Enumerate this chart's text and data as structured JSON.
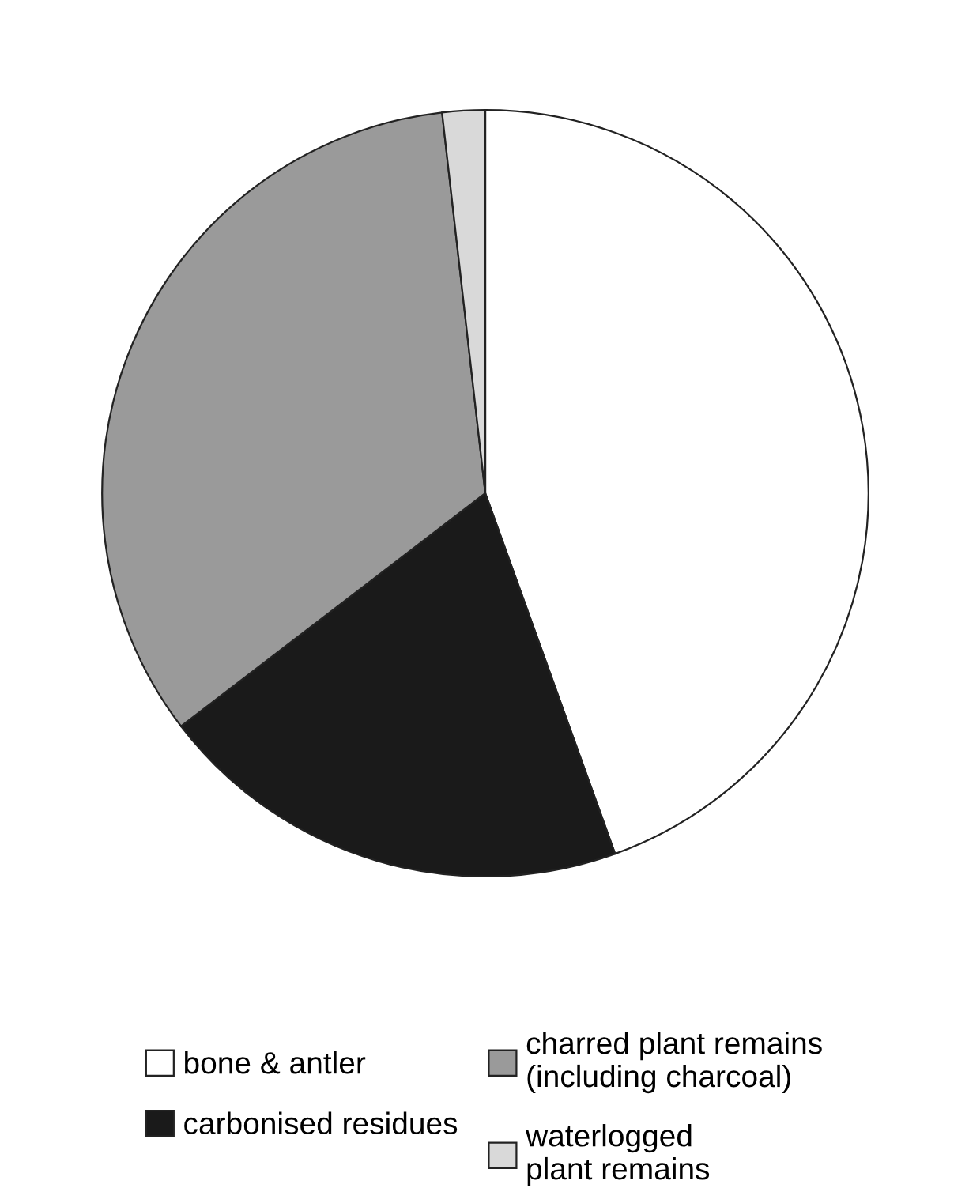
{
  "chart_data": {
    "type": "pie",
    "categories": [
      "bone & antler",
      "carbonised residues",
      "charred plant remains\n(including charcoal)",
      "waterlogged\nplant remains"
    ],
    "values": [
      44.5,
      20.1,
      33.6,
      1.8
    ],
    "colors": [
      "#ffffff",
      "#1a1a1a",
      "#9a9a9a",
      "#d9d9d9"
    ],
    "legend": "bottom"
  }
}
